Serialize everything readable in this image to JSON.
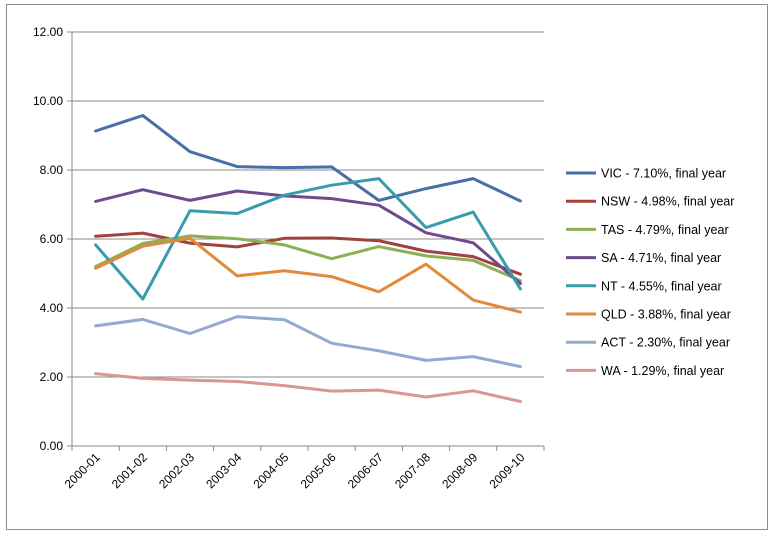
{
  "chart_data": {
    "type": "line",
    "title": "",
    "xlabel": "",
    "ylabel": "",
    "ylim": [
      0,
      12
    ],
    "y_ticks": [
      "0.00",
      "2.00",
      "4.00",
      "6.00",
      "8.00",
      "10.00",
      "12.00"
    ],
    "categories": [
      "2000-01",
      "2001-02",
      "2002-03",
      "2003-04",
      "2004-05",
      "2005-06",
      "2006-07",
      "2007-08",
      "2008-09",
      "2009-10"
    ],
    "grid": true,
    "legend_position": "right",
    "series": [
      {
        "name": "VIC - 7.10%, final year",
        "color": "#4A6FA5",
        "values": [
          9.13,
          9.58,
          8.53,
          8.1,
          8.07,
          8.09,
          7.12,
          7.46,
          7.75,
          7.1
        ]
      },
      {
        "name": "NSW - 4.98%, final year",
        "color": "#A0413C",
        "values": [
          6.08,
          6.17,
          5.88,
          5.77,
          6.02,
          6.03,
          5.95,
          5.65,
          5.49,
          4.98
        ]
      },
      {
        "name": "TAS - 4.79%, final year",
        "color": "#8CB054",
        "values": [
          5.2,
          5.87,
          6.09,
          6.01,
          5.83,
          5.43,
          5.78,
          5.51,
          5.38,
          4.79
        ]
      },
      {
        "name": "SA - 4.71%, final year",
        "color": "#6E4C8C",
        "values": [
          7.09,
          7.43,
          7.12,
          7.39,
          7.25,
          7.17,
          6.98,
          6.18,
          5.89,
          4.71
        ]
      },
      {
        "name": "NT - 4.55%, final year",
        "color": "#3A9BAA",
        "values": [
          5.83,
          4.26,
          6.82,
          6.74,
          7.27,
          7.56,
          7.75,
          6.33,
          6.78,
          4.55
        ]
      },
      {
        "name": "QLD - 3.88%, final year",
        "color": "#E08A3C",
        "values": [
          5.15,
          5.79,
          6.02,
          4.93,
          5.08,
          4.91,
          4.47,
          5.27,
          4.23,
          3.88
        ]
      },
      {
        "name": "ACT - 2.30%, final year",
        "color": "#93A9D1",
        "values": [
          3.48,
          3.67,
          3.26,
          3.75,
          3.66,
          2.98,
          2.76,
          2.48,
          2.59,
          2.3
        ]
      },
      {
        "name": "WA - 1.29%, final year",
        "color": "#D99695",
        "values": [
          2.1,
          1.96,
          1.91,
          1.87,
          1.75,
          1.59,
          1.62,
          1.42,
          1.6,
          1.29
        ]
      }
    ]
  }
}
